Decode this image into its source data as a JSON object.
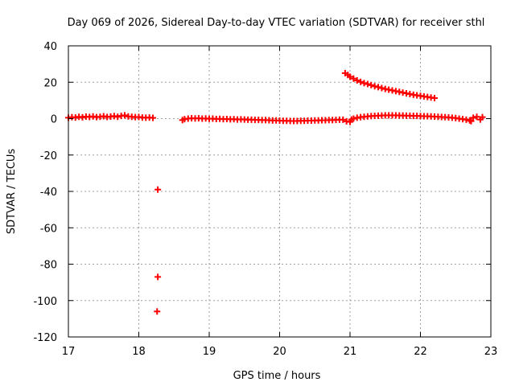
{
  "chart_data": {
    "type": "scatter",
    "title": "Day 069 of 2026, Sidereal Day-to-day VTEC variation (SDTVAR) for receiver sthl",
    "xlabel": "GPS time / hours",
    "ylabel": "SDTVAR / TECUs",
    "xlim": [
      17,
      23
    ],
    "ylim": [
      -120,
      40
    ],
    "xticks": [
      "17",
      "18",
      "19",
      "20",
      "21",
      "22",
      "23"
    ],
    "yticks": [
      "40",
      "20",
      "0",
      "-20",
      "-40",
      "-60",
      "-80",
      "-100",
      "-120"
    ],
    "grid": true,
    "marker": "plus",
    "color": "#ff0000",
    "series": [
      {
        "points": [
          [
            17.0,
            0.5
          ],
          [
            17.05,
            0.8
          ],
          [
            17.1,
            0.6
          ],
          [
            17.15,
            1.0
          ],
          [
            17.2,
            0.7
          ],
          [
            17.25,
            1.1
          ],
          [
            17.3,
            0.9
          ],
          [
            17.35,
            1.2
          ],
          [
            17.4,
            0.8
          ],
          [
            17.45,
            1.0
          ],
          [
            17.5,
            1.3
          ],
          [
            17.55,
            0.9
          ],
          [
            17.6,
            1.1
          ],
          [
            17.65,
            1.4
          ],
          [
            17.7,
            1.0
          ],
          [
            17.75,
            1.5
          ],
          [
            17.8,
            1.8
          ],
          [
            17.85,
            1.2
          ],
          [
            17.9,
            1.0
          ],
          [
            17.95,
            0.8
          ],
          [
            18.0,
            0.9
          ],
          [
            18.05,
            0.6
          ],
          [
            18.1,
            0.5
          ],
          [
            18.15,
            0.6
          ],
          [
            18.2,
            0.4
          ],
          [
            18.27,
            -39
          ],
          [
            18.27,
            -87
          ],
          [
            18.26,
            -106
          ],
          [
            18.62,
            -0.8
          ],
          [
            18.65,
            -0.3
          ],
          [
            18.7,
            0.0
          ],
          [
            18.75,
            0.2
          ],
          [
            18.8,
            0.1
          ],
          [
            18.85,
            0.2
          ],
          [
            18.9,
            0.0
          ],
          [
            18.95,
            0.1
          ],
          [
            19.0,
            -0.1
          ],
          [
            19.05,
            0.0
          ],
          [
            19.1,
            -0.2
          ],
          [
            19.15,
            -0.1
          ],
          [
            19.2,
            -0.3
          ],
          [
            19.25,
            -0.2
          ],
          [
            19.3,
            -0.4
          ],
          [
            19.35,
            -0.3
          ],
          [
            19.4,
            -0.5
          ],
          [
            19.45,
            -0.4
          ],
          [
            19.5,
            -0.5
          ],
          [
            19.55,
            -0.6
          ],
          [
            19.6,
            -0.6
          ],
          [
            19.65,
            -0.7
          ],
          [
            19.7,
            -0.7
          ],
          [
            19.75,
            -0.8
          ],
          [
            19.8,
            -0.8
          ],
          [
            19.85,
            -0.9
          ],
          [
            19.9,
            -1.0
          ],
          [
            19.95,
            -1.0
          ],
          [
            20.0,
            -1.1
          ],
          [
            20.05,
            -1.2
          ],
          [
            20.1,
            -1.2
          ],
          [
            20.15,
            -1.3
          ],
          [
            20.2,
            -1.3
          ],
          [
            20.25,
            -1.3
          ],
          [
            20.3,
            -1.2
          ],
          [
            20.35,
            -1.2
          ],
          [
            20.4,
            -1.1
          ],
          [
            20.45,
            -1.1
          ],
          [
            20.5,
            -1.0
          ],
          [
            20.55,
            -1.0
          ],
          [
            20.6,
            -0.9
          ],
          [
            20.65,
            -0.9
          ],
          [
            20.7,
            -0.8
          ],
          [
            20.75,
            -0.8
          ],
          [
            20.8,
            -0.7
          ],
          [
            20.85,
            -0.6
          ],
          [
            20.9,
            -0.6
          ],
          [
            20.95,
            -1.5
          ],
          [
            21.0,
            -1.8
          ],
          [
            21.02,
            -0.5
          ],
          [
            21.05,
            0.0
          ],
          [
            21.1,
            0.5
          ],
          [
            21.15,
            0.8
          ],
          [
            21.2,
            1.0
          ],
          [
            21.25,
            1.2
          ],
          [
            21.3,
            1.4
          ],
          [
            21.35,
            1.5
          ],
          [
            21.4,
            1.6
          ],
          [
            21.45,
            1.7
          ],
          [
            21.5,
            1.8
          ],
          [
            21.55,
            1.8
          ],
          [
            21.6,
            1.8
          ],
          [
            21.65,
            1.8
          ],
          [
            21.7,
            1.7
          ],
          [
            21.75,
            1.7
          ],
          [
            21.8,
            1.6
          ],
          [
            21.85,
            1.6
          ],
          [
            21.9,
            1.5
          ],
          [
            21.95,
            1.5
          ],
          [
            22.0,
            1.4
          ],
          [
            22.05,
            1.3
          ],
          [
            22.1,
            1.3
          ],
          [
            22.15,
            1.2
          ],
          [
            22.2,
            1.1
          ],
          [
            22.25,
            1.0
          ],
          [
            22.3,
            0.9
          ],
          [
            22.35,
            0.8
          ],
          [
            22.4,
            0.7
          ],
          [
            22.45,
            0.5
          ],
          [
            22.5,
            0.3
          ],
          [
            22.55,
            0.0
          ],
          [
            22.6,
            -0.3
          ],
          [
            22.65,
            -0.6
          ],
          [
            22.7,
            -1.0
          ],
          [
            22.72,
            -1.4
          ],
          [
            22.75,
            0.5
          ],
          [
            22.8,
            1.0
          ],
          [
            22.85,
            -0.5
          ],
          [
            22.88,
            0.8
          ],
          [
            20.93,
            25.0
          ],
          [
            20.97,
            24.0
          ],
          [
            21.0,
            23.0
          ],
          [
            21.05,
            22.0
          ],
          [
            21.1,
            21.0
          ],
          [
            21.15,
            20.2
          ],
          [
            21.2,
            19.5
          ],
          [
            21.25,
            19.0
          ],
          [
            21.3,
            18.4
          ],
          [
            21.35,
            17.8
          ],
          [
            21.4,
            17.3
          ],
          [
            21.45,
            16.8
          ],
          [
            21.5,
            16.3
          ],
          [
            21.55,
            15.9
          ],
          [
            21.6,
            15.5
          ],
          [
            21.65,
            15.1
          ],
          [
            21.7,
            14.7
          ],
          [
            21.75,
            14.3
          ],
          [
            21.8,
            13.9
          ],
          [
            21.85,
            13.5
          ],
          [
            21.9,
            13.1
          ],
          [
            21.95,
            12.8
          ],
          [
            22.0,
            12.5
          ],
          [
            22.05,
            12.2
          ],
          [
            22.1,
            11.9
          ],
          [
            22.15,
            11.6
          ],
          [
            22.2,
            11.3
          ]
        ]
      }
    ]
  }
}
